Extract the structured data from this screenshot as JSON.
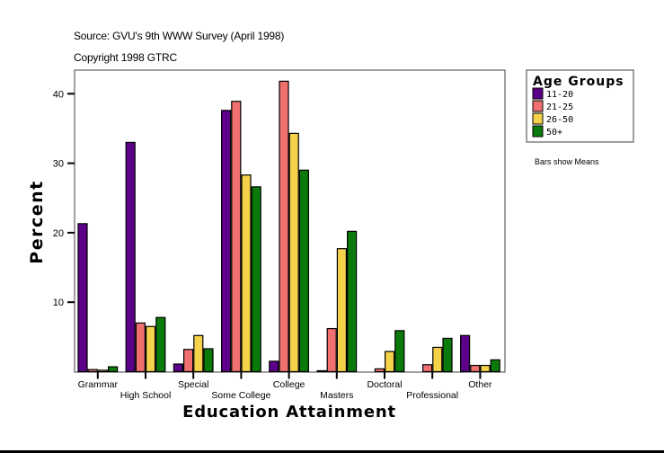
{
  "header": {
    "source": "Source: GVU's 9th WWW Survey (April 1998)",
    "copyright": "Copyright 1998 GTRC"
  },
  "legend": {
    "title": "Age Groups",
    "note": "Bars show Means"
  },
  "colors": {
    "11-20": "#5c0089",
    "21-25": "#f07070",
    "26-50": "#f5d24a",
    "50+": "#0a7a0a"
  },
  "chart_data": {
    "type": "bar",
    "title": "",
    "xlabel": "Education Attainment",
    "ylabel": "Percent",
    "ylim": [
      0,
      44
    ],
    "yticks": [
      10,
      20,
      30,
      40
    ],
    "grid": false,
    "legend_position": "right",
    "legend_title": "Age Groups",
    "annotations": [
      "Bars show Means",
      "Source: GVU's 9th WWW Survey (April 1998)",
      "Copyright 1998 GTRC"
    ],
    "categories": [
      "Grammar",
      "High School",
      "Special",
      "Some College",
      "College",
      "Masters",
      "Doctoral",
      "Professional",
      "Other"
    ],
    "series": [
      {
        "name": "11-20",
        "color": "#5c0089",
        "values": [
          21.3,
          33.0,
          1.1,
          37.6,
          1.5,
          0.1,
          0.0,
          0.0,
          5.2
        ]
      },
      {
        "name": "21-25",
        "color": "#f07070",
        "values": [
          0.3,
          7.0,
          3.2,
          38.9,
          41.8,
          6.2,
          0.4,
          1.0,
          0.9
        ]
      },
      {
        "name": "26-50",
        "color": "#f5d24a",
        "values": [
          0.2,
          6.5,
          5.2,
          28.3,
          34.3,
          17.7,
          2.9,
          3.5,
          0.9
        ]
      },
      {
        "name": "50+",
        "color": "#0a7a0a",
        "values": [
          0.7,
          7.8,
          3.3,
          26.6,
          29.0,
          20.2,
          5.9,
          4.8,
          1.7
        ]
      }
    ]
  }
}
